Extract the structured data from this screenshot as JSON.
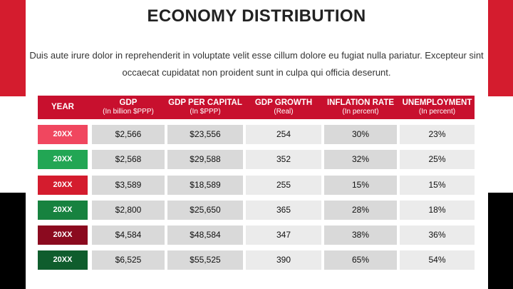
{
  "title": "ECONOMY DISTRIBUTION",
  "intro": "Duis aute irure dolor in reprehenderit in voluptate velit esse cillum dolore eu fugiat nulla pariatur. Excepteur sint occaecat cupidatat non proident sunt in culpa qui officia deserunt.",
  "colors": {
    "header_bg": "#c8102e",
    "accent_red": "#d41c2e",
    "accent_black": "#000000"
  },
  "table": {
    "headers": [
      {
        "main": "YEAR",
        "sub": ""
      },
      {
        "main": "GDP",
        "sub": "(In billion $PPP)"
      },
      {
        "main": "GDP PER CAPITAL",
        "sub": "(In $PPP)"
      },
      {
        "main": "GDP GROWTH",
        "sub": "(Real)"
      },
      {
        "main": "INFLATION RATE",
        "sub": "(In percent)"
      },
      {
        "main": "UNEMPLOYMENT",
        "sub": "(In percent)"
      }
    ],
    "rows": [
      {
        "year": "20XX",
        "color": "#f0475f",
        "cells": [
          "$2,566",
          "$23,556",
          "254",
          "30%",
          "23%"
        ]
      },
      {
        "year": "20XX",
        "color": "#22a654",
        "cells": [
          "$2,568",
          "$29,588",
          "352",
          "32%",
          "25%"
        ]
      },
      {
        "year": "20XX",
        "color": "#d41c2e",
        "cells": [
          "$3,589",
          "$18,589",
          "255",
          "15%",
          "15%"
        ]
      },
      {
        "year": "20XX",
        "color": "#17823f",
        "cells": [
          "$2,800",
          "$25,650",
          "365",
          "28%",
          "18%"
        ]
      },
      {
        "year": "20XX",
        "color": "#8b0a1f",
        "cells": [
          "$4,584",
          "$48,584",
          "347",
          "38%",
          "36%"
        ]
      },
      {
        "year": "20XX",
        "color": "#0f5d2d",
        "cells": [
          "$6,525",
          "$55,525",
          "390",
          "65%",
          "54%"
        ]
      }
    ]
  }
}
